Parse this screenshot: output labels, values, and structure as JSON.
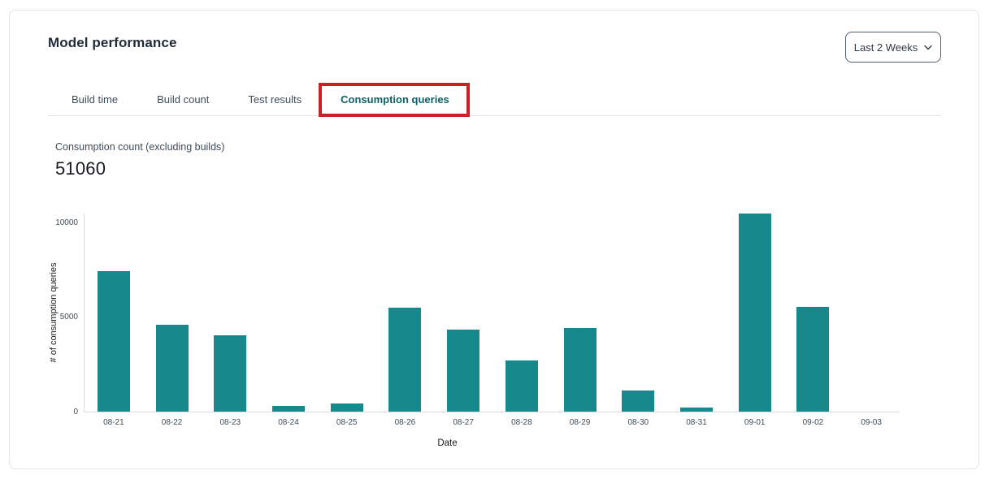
{
  "header": {
    "title": "Model performance"
  },
  "time_range_dropdown": {
    "value": "Last 2 Weeks",
    "icon": "chevron-down-icon"
  },
  "tabs": [
    {
      "label": "Build time",
      "active": false
    },
    {
      "label": "Build count",
      "active": false
    },
    {
      "label": "Test results",
      "active": false
    },
    {
      "label": "Consumption queries",
      "active": true,
      "annotated": true
    }
  ],
  "metric": {
    "label": "Consumption count (excluding builds)",
    "value": "51060"
  },
  "chart_data": {
    "type": "bar",
    "title": "",
    "categories": [
      "08-21",
      "08-22",
      "08-23",
      "08-24",
      "08-25",
      "08-26",
      "08-27",
      "08-28",
      "08-29",
      "08-30",
      "08-31",
      "09-01",
      "09-02",
      "09-03"
    ],
    "values": [
      7430,
      4580,
      4020,
      310,
      440,
      5500,
      4340,
      2700,
      4420,
      1130,
      200,
      10440,
      5550,
      0
    ],
    "xlabel": "Date",
    "ylabel": "# of consumption queries",
    "ylim": [
      0,
      10500
    ],
    "yticks": [
      0,
      5000,
      10000
    ],
    "grid": false,
    "legend": "none",
    "bar_color": "#17898d"
  },
  "colors": {
    "bar_teal": "#17898d",
    "active_tab_teal": "#0c6066",
    "annotation_red": "#cb2026",
    "inactive_tab_text": "#3e4c59",
    "axis_line": "#d9dbdd",
    "card_border": "#e3e4e6"
  }
}
